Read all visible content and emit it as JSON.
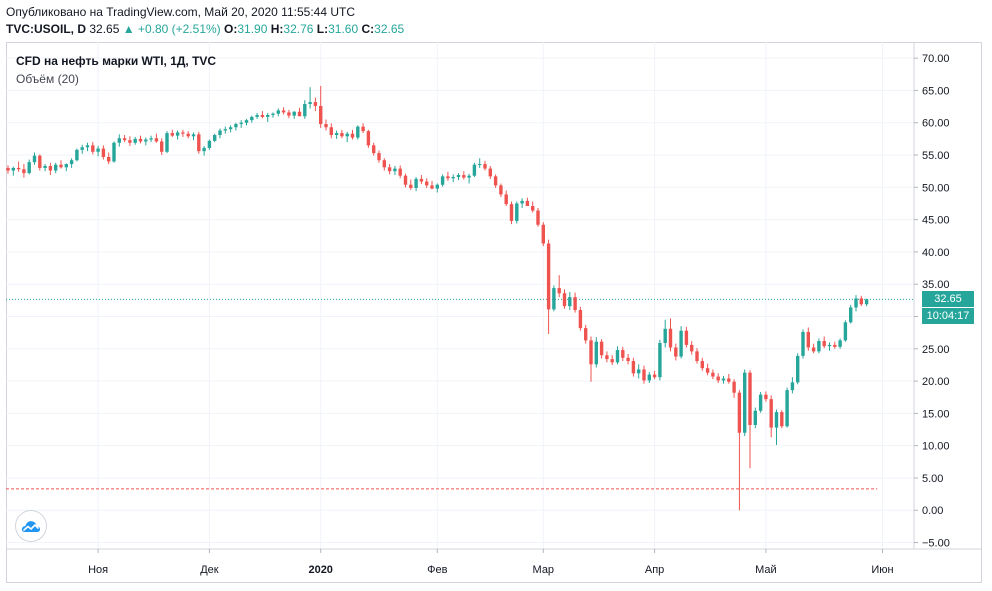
{
  "header": {
    "published": "Опубликовано на TradingView.com, Май 20, 2020 11:55:44 UTC",
    "symbol_label": "TVC:USOIL, D",
    "last_price": "32.65",
    "change": "▲ +0.80 (+2.51%)",
    "open_label": "O:",
    "open_value": "31.90",
    "high_label": "H:",
    "high_value": "32.76",
    "low_label": "L:",
    "low_value": "31.60",
    "close_label": "C:",
    "close_value": "32.65"
  },
  "legend": {
    "series_title": "CFD на нефть марки WTI, 1Д, TVC",
    "volume_label": "Объём (20)"
  },
  "price_tags": {
    "last_price": "32.65",
    "countdown": "10:04:17"
  },
  "colors": {
    "up": "#26a69a",
    "down": "#ef5350",
    "grid": "#f0f3fa",
    "axis_text": "#131722",
    "last_price_line": "#26a69a",
    "low_level_line": "#ef5350"
  },
  "logo": {
    "icon": "tradingview-cloud-icon"
  },
  "chart_data": {
    "type": "candlestick",
    "y_axis": {
      "min": -6,
      "max": 72.5,
      "ticks": [
        "70.00",
        "65.00",
        "60.00",
        "55.00",
        "50.00",
        "45.00",
        "40.00",
        "35.00",
        "30.00",
        "25.00",
        "20.00",
        "15.00",
        "10.00",
        "5.00",
        "0.00",
        "−5.00"
      ],
      "tick_values": [
        70,
        65,
        60,
        55,
        50,
        45,
        40,
        35,
        30,
        25,
        20,
        15,
        10,
        5,
        0,
        -5
      ],
      "position": "right"
    },
    "x_axis": {
      "labels": [
        "Ноя",
        "Дек",
        "2020",
        "Фев",
        "Мар",
        "Апр",
        "Май",
        "Июн"
      ],
      "label_bars": [
        17,
        38,
        59,
        81,
        101,
        122,
        143,
        165
      ],
      "bold_label": "2020"
    },
    "grid": true,
    "horizontal_lines": [
      {
        "value": 32.65,
        "style": "dotted",
        "color": "#26a69a"
      },
      {
        "value": 3.3,
        "style": "dashed",
        "color": "#ef5350"
      }
    ],
    "ohlc": [
      [
        53.0,
        53.4,
        52.1,
        52.6
      ],
      [
        52.6,
        53.2,
        51.8,
        53.0
      ],
      [
        53.0,
        54.0,
        52.4,
        52.8
      ],
      [
        52.8,
        53.6,
        51.5,
        52.2
      ],
      [
        52.2,
        54.3,
        52.0,
        53.9
      ],
      [
        53.9,
        55.4,
        53.5,
        54.9
      ],
      [
        54.9,
        55.1,
        52.6,
        53.0
      ],
      [
        53.0,
        53.6,
        52.5,
        53.3
      ],
      [
        53.3,
        53.8,
        51.9,
        52.6
      ],
      [
        52.6,
        53.8,
        52.2,
        53.5
      ],
      [
        53.5,
        54.2,
        52.9,
        53.1
      ],
      [
        53.1,
        53.7,
        52.5,
        53.6
      ],
      [
        53.6,
        54.5,
        53.0,
        54.2
      ],
      [
        54.2,
        56.0,
        54.0,
        55.8
      ],
      [
        55.8,
        56.6,
        55.2,
        56.2
      ],
      [
        56.2,
        56.9,
        55.6,
        56.5
      ],
      [
        56.5,
        57.0,
        55.1,
        55.5
      ],
      [
        55.5,
        56.4,
        54.8,
        56.0
      ],
      [
        56.0,
        56.5,
        54.3,
        54.7
      ],
      [
        54.7,
        55.4,
        53.6,
        54.0
      ],
      [
        54.0,
        57.1,
        53.8,
        56.9
      ],
      [
        56.9,
        58.2,
        56.3,
        57.6
      ],
      [
        57.6,
        58.1,
        57.0,
        57.3
      ],
      [
        57.3,
        57.9,
        56.4,
        56.9
      ],
      [
        56.9,
        57.8,
        56.6,
        57.5
      ],
      [
        57.5,
        58.0,
        56.8,
        57.1
      ],
      [
        57.1,
        57.7,
        56.5,
        57.4
      ],
      [
        57.4,
        58.0,
        57.0,
        57.6
      ],
      [
        57.6,
        58.3,
        56.9,
        57.1
      ],
      [
        57.1,
        57.6,
        55.0,
        55.5
      ],
      [
        55.5,
        58.7,
        55.3,
        58.4
      ],
      [
        58.4,
        58.9,
        57.8,
        58.0
      ],
      [
        58.0,
        58.8,
        57.4,
        58.5
      ],
      [
        58.5,
        58.9,
        57.8,
        58.3
      ],
      [
        58.3,
        58.7,
        57.6,
        57.9
      ],
      [
        57.9,
        58.5,
        57.3,
        58.2
      ],
      [
        58.2,
        58.6,
        55.2,
        55.6
      ],
      [
        55.6,
        56.4,
        54.9,
        56.1
      ],
      [
        56.1,
        57.4,
        55.8,
        57.2
      ],
      [
        57.2,
        58.3,
        57.0,
        58.1
      ],
      [
        58.1,
        59.1,
        57.6,
        58.8
      ],
      [
        58.8,
        59.4,
        58.3,
        59.0
      ],
      [
        59.0,
        59.6,
        58.5,
        59.3
      ],
      [
        59.3,
        60.0,
        58.8,
        59.8
      ],
      [
        59.8,
        60.4,
        59.2,
        60.0
      ],
      [
        60.0,
        60.6,
        59.6,
        60.4
      ],
      [
        60.4,
        61.1,
        60.0,
        60.9
      ],
      [
        60.9,
        61.5,
        60.6,
        61.2
      ],
      [
        61.2,
        61.8,
        60.7,
        60.9
      ],
      [
        60.9,
        61.5,
        60.1,
        61.2
      ],
      [
        61.2,
        61.6,
        60.8,
        61.4
      ],
      [
        61.4,
        62.2,
        61.0,
        61.9
      ],
      [
        61.9,
        62.4,
        61.3,
        61.6
      ],
      [
        61.6,
        62.0,
        60.7,
        61.1
      ],
      [
        61.1,
        61.8,
        60.6,
        61.7
      ],
      [
        61.7,
        62.3,
        61.2,
        61.0
      ],
      [
        61.0,
        63.5,
        60.6,
        62.9
      ],
      [
        62.9,
        65.5,
        62.2,
        63.2
      ],
      [
        63.2,
        63.9,
        61.8,
        62.6
      ],
      [
        62.6,
        65.7,
        59.2,
        59.8
      ],
      [
        59.8,
        60.5,
        58.8,
        59.3
      ],
      [
        59.3,
        59.9,
        57.6,
        58.1
      ],
      [
        58.1,
        58.8,
        57.5,
        58.4
      ],
      [
        58.4,
        58.9,
        57.6,
        57.9
      ],
      [
        57.9,
        58.6,
        57.0,
        58.3
      ],
      [
        58.3,
        58.9,
        57.4,
        57.7
      ],
      [
        57.7,
        59.6,
        57.4,
        59.4
      ],
      [
        59.4,
        59.9,
        58.4,
        58.7
      ],
      [
        58.7,
        58.9,
        56.1,
        56.5
      ],
      [
        56.5,
        56.9,
        54.9,
        55.3
      ],
      [
        55.3,
        55.7,
        53.8,
        54.2
      ],
      [
        54.2,
        54.5,
        52.6,
        53.1
      ],
      [
        53.1,
        53.6,
        52.0,
        52.5
      ],
      [
        52.5,
        53.3,
        51.9,
        52.9
      ],
      [
        52.9,
        53.4,
        51.4,
        51.8
      ],
      [
        51.8,
        52.1,
        50.0,
        50.4
      ],
      [
        50.4,
        51.2,
        49.6,
        49.9
      ],
      [
        49.9,
        51.6,
        49.4,
        51.3
      ],
      [
        51.3,
        51.9,
        50.5,
        50.9
      ],
      [
        50.9,
        51.4,
        49.9,
        50.3
      ],
      [
        50.3,
        51.0,
        49.7,
        49.8
      ],
      [
        49.8,
        50.6,
        49.2,
        50.4
      ],
      [
        50.4,
        52.0,
        50.1,
        51.7
      ],
      [
        51.7,
        52.4,
        51.0,
        51.4
      ],
      [
        51.4,
        52.0,
        50.8,
        51.6
      ],
      [
        51.6,
        52.2,
        51.1,
        51.9
      ],
      [
        51.9,
        52.5,
        51.2,
        51.5
      ],
      [
        51.5,
        52.1,
        50.6,
        51.8
      ],
      [
        51.8,
        53.8,
        51.6,
        53.5
      ],
      [
        53.5,
        54.5,
        53.0,
        53.6
      ],
      [
        53.6,
        54.1,
        52.6,
        52.9
      ],
      [
        52.9,
        53.3,
        51.3,
        51.7
      ],
      [
        51.7,
        52.0,
        49.9,
        50.3
      ],
      [
        50.3,
        50.6,
        48.5,
        48.9
      ],
      [
        48.9,
        49.5,
        47.1,
        47.4
      ],
      [
        47.4,
        47.8,
        44.3,
        44.8
      ],
      [
        44.8,
        47.8,
        44.4,
        47.5
      ],
      [
        47.5,
        48.3,
        46.8,
        47.9
      ],
      [
        47.9,
        48.4,
        47.3,
        47.1
      ],
      [
        47.1,
        47.8,
        46.1,
        46.4
      ],
      [
        46.4,
        46.8,
        43.9,
        44.2
      ],
      [
        44.2,
        44.6,
        40.9,
        41.3
      ],
      [
        41.3,
        41.9,
        27.3,
        31.1
      ],
      [
        31.1,
        34.8,
        30.8,
        34.4
      ],
      [
        34.4,
        36.4,
        33.0,
        33.6
      ],
      [
        33.6,
        34.2,
        31.2,
        31.6
      ],
      [
        31.6,
        33.8,
        31.0,
        33.0
      ],
      [
        33.0,
        33.7,
        30.6,
        31.0
      ],
      [
        31.0,
        31.5,
        27.8,
        28.2
      ],
      [
        28.2,
        28.7,
        25.8,
        26.3
      ],
      [
        26.3,
        26.9,
        19.9,
        22.6
      ],
      [
        22.6,
        26.8,
        22.1,
        26.1
      ],
      [
        26.1,
        26.5,
        23.5,
        24.0
      ],
      [
        24.0,
        24.6,
        22.9,
        23.4
      ],
      [
        23.4,
        24.0,
        22.5,
        22.9
      ],
      [
        22.9,
        25.4,
        22.6,
        24.8
      ],
      [
        24.8,
        25.3,
        23.1,
        23.6
      ],
      [
        23.6,
        24.2,
        22.6,
        23.1
      ],
      [
        23.1,
        23.6,
        20.7,
        21.2
      ],
      [
        21.2,
        22.6,
        20.4,
        21.8
      ],
      [
        21.8,
        22.4,
        19.6,
        20.1
      ],
      [
        20.1,
        21.4,
        19.7,
        21.0
      ],
      [
        21.0,
        21.6,
        20.3,
        20.6
      ],
      [
        20.6,
        26.4,
        20.1,
        25.9
      ],
      [
        25.9,
        29.5,
        25.2,
        28.1
      ],
      [
        28.1,
        29.7,
        24.6,
        25.2
      ],
      [
        25.2,
        25.8,
        23.2,
        23.8
      ],
      [
        23.8,
        28.5,
        23.5,
        27.8
      ],
      [
        27.8,
        28.4,
        25.2,
        25.6
      ],
      [
        25.6,
        26.2,
        24.1,
        24.6
      ],
      [
        24.6,
        25.1,
        22.7,
        23.1
      ],
      [
        23.1,
        23.6,
        21.6,
        22.0
      ],
      [
        22.0,
        22.7,
        20.9,
        21.3
      ],
      [
        21.3,
        21.8,
        20.3,
        20.7
      ],
      [
        20.7,
        21.2,
        19.7,
        20.1
      ],
      [
        20.1,
        20.8,
        19.6,
        20.4
      ],
      [
        20.4,
        21.1,
        19.6,
        19.9
      ],
      [
        19.9,
        20.3,
        17.4,
        18.2
      ],
      [
        18.2,
        18.6,
        0.0,
        12.0
      ],
      [
        12.0,
        21.8,
        11.5,
        21.3
      ],
      [
        21.3,
        21.7,
        6.5,
        13.2
      ],
      [
        13.2,
        15.9,
        12.7,
        15.4
      ],
      [
        15.4,
        18.3,
        15.1,
        17.9
      ],
      [
        17.9,
        18.4,
        16.8,
        17.2
      ],
      [
        17.2,
        17.8,
        11.3,
        12.8
      ],
      [
        12.8,
        15.6,
        10.1,
        15.2
      ],
      [
        15.2,
        15.5,
        12.7,
        13.0
      ],
      [
        13.0,
        19.0,
        12.8,
        18.6
      ],
      [
        18.6,
        20.6,
        18.1,
        19.8
      ],
      [
        19.8,
        24.3,
        19.5,
        23.9
      ],
      [
        23.9,
        28.0,
        23.5,
        27.6
      ],
      [
        27.6,
        28.3,
        24.7,
        25.2
      ],
      [
        25.2,
        25.8,
        24.3,
        24.6
      ],
      [
        24.6,
        26.6,
        24.3,
        26.2
      ],
      [
        26.2,
        26.9,
        25.1,
        25.4
      ],
      [
        25.4,
        26.0,
        24.7,
        25.6
      ],
      [
        25.6,
        26.1,
        25.0,
        25.3
      ],
      [
        25.3,
        26.6,
        25.0,
        26.3
      ],
      [
        26.3,
        29.4,
        26.1,
        29.1
      ],
      [
        29.1,
        31.8,
        28.9,
        31.4
      ],
      [
        31.4,
        33.3,
        30.8,
        32.8
      ],
      [
        32.8,
        33.2,
        31.6,
        31.9
      ],
      [
        31.9,
        32.76,
        31.6,
        32.65
      ]
    ]
  }
}
